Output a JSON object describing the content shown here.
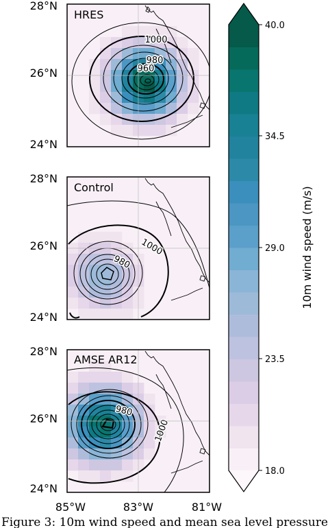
{
  "chart_data": {
    "type": "heatmap",
    "panels": [
      {
        "title": "HRES",
        "ylabel_ticks": [
          "28°N",
          "26°N",
          "24°N"
        ],
        "contour_labels": [
          "1000",
          "980",
          "960"
        ],
        "cyclone_center": {
          "lon": -82.8,
          "lat": 25.8
        },
        "max_wind": 40.0,
        "pressure_min": 955
      },
      {
        "title": "Control",
        "ylabel_ticks": [
          "28°N",
          "26°N",
          "24°N"
        ],
        "contour_labels": [
          "1000",
          "980"
        ],
        "cyclone_center": {
          "lon": -84.0,
          "lat": 25.2
        },
        "max_wind": 27.0,
        "pressure_min": 972
      },
      {
        "title": "AMSE AR12",
        "ylabel_ticks": [
          "28°N",
          "26°N",
          "24°N"
        ],
        "contour_labels": [
          "980",
          "1000"
        ],
        "cyclone_center": {
          "lon": -84.0,
          "lat": 25.9
        },
        "max_wind": 38.0,
        "pressure_min": 962
      }
    ],
    "xlabel_ticks": [
      "85°W",
      "83°W",
      "81°W"
    ],
    "lon_range": [
      -85.0,
      -81.0
    ],
    "lat_range": [
      24.0,
      28.0
    ],
    "colorbar": {
      "label": "10m wind speed (m/s)",
      "ticks": [
        "40.0",
        "34.5",
        "29.0",
        "23.5",
        "18.0"
      ],
      "range": [
        18.0,
        40.0
      ],
      "extend": "both",
      "colors": [
        "#f8f0f6",
        "#f0e4ef",
        "#e7d7ea",
        "#dccde6",
        "#cdc7e2",
        "#bdc2e0",
        "#aebcdc",
        "#9dbbd9",
        "#8ab5d6",
        "#71acd1",
        "#5b9fcb",
        "#4b96c3",
        "#3a8fbd",
        "#2c8aa8",
        "#21839e",
        "#188193",
        "#0f7a84",
        "#08766e",
        "#066a5a",
        "#055a4a"
      ]
    }
  },
  "caption": "Figure 3: 10m wind speed and mean sea level pressure"
}
